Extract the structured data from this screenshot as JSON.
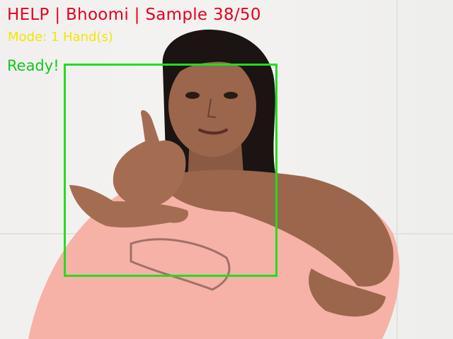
{
  "overlay": {
    "title": "HELP | Bhoomi | Sample 38/50",
    "mode": "Mode: 1 Hand(s)",
    "status": "Ready!"
  },
  "colors": {
    "title": "#e6001e",
    "mode": "#f2e600",
    "status": "#12c81a",
    "roi_box": "#22dd22",
    "wall": "#f1f0ee",
    "shirt": "#f6b2a6"
  }
}
